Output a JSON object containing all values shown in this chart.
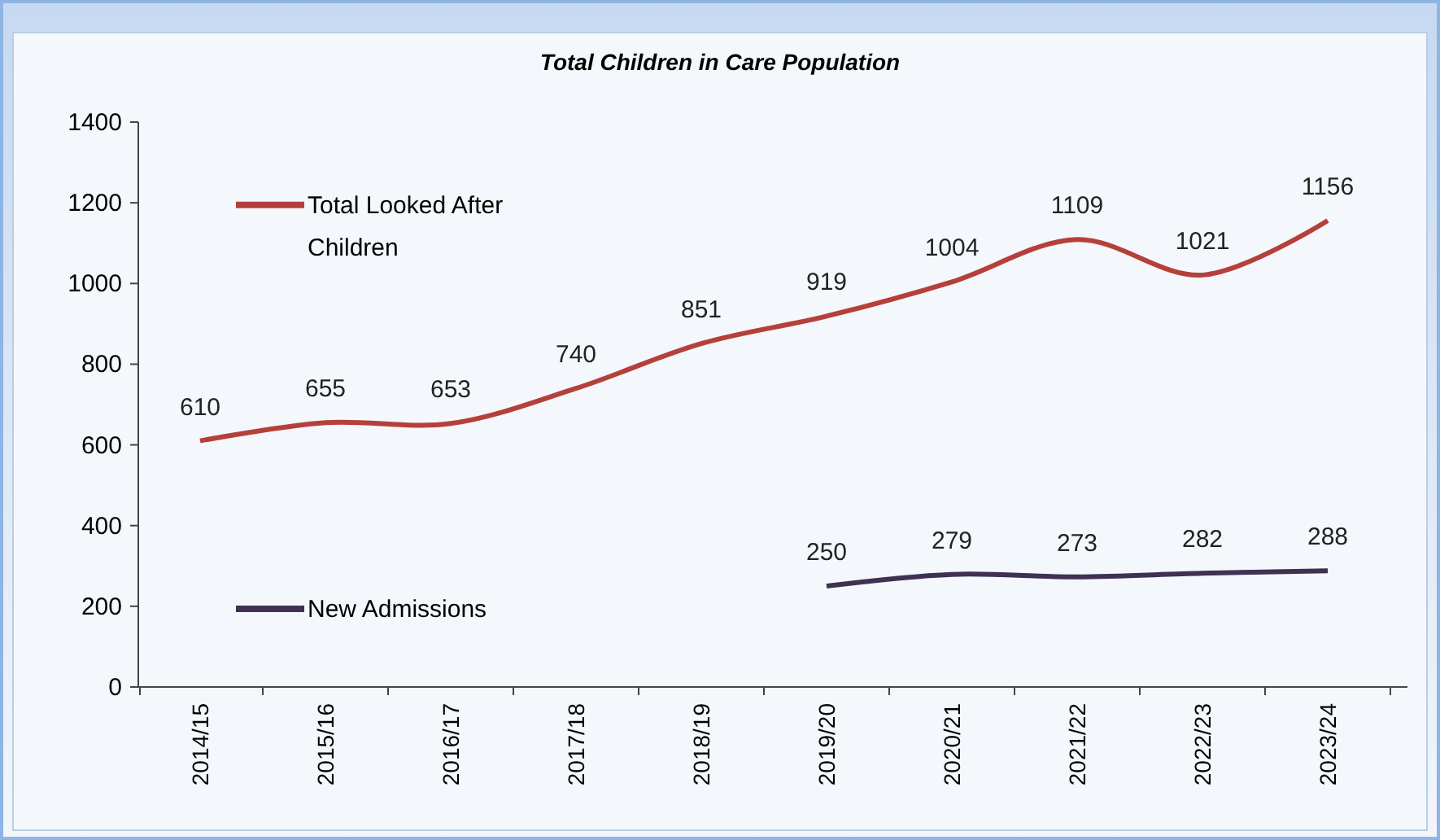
{
  "chart_data": {
    "type": "line",
    "title": "Total Children in Care Population",
    "categories": [
      "2014/15",
      "2015/16",
      "2016/17",
      "2017/18",
      "2018/19",
      "2019/20",
      "2020/21",
      "2021/22",
      "2022/23",
      "2023/24"
    ],
    "series": [
      {
        "name": "Total Looked After Children",
        "color": "#b5403b",
        "values": [
          610,
          655,
          653,
          740,
          851,
          919,
          1004,
          1109,
          1021,
          1156
        ]
      },
      {
        "name": "New Admissions",
        "color": "#3f3151",
        "values": [
          null,
          null,
          null,
          null,
          null,
          250,
          279,
          273,
          282,
          288
        ]
      }
    ],
    "ylim": [
      0,
      1400
    ],
    "yticks": [
      0,
      200,
      400,
      600,
      800,
      1000,
      1200,
      1400
    ],
    "grid": false,
    "legend": "left",
    "data_labels": true,
    "marker": "none",
    "line_style": "solid"
  }
}
